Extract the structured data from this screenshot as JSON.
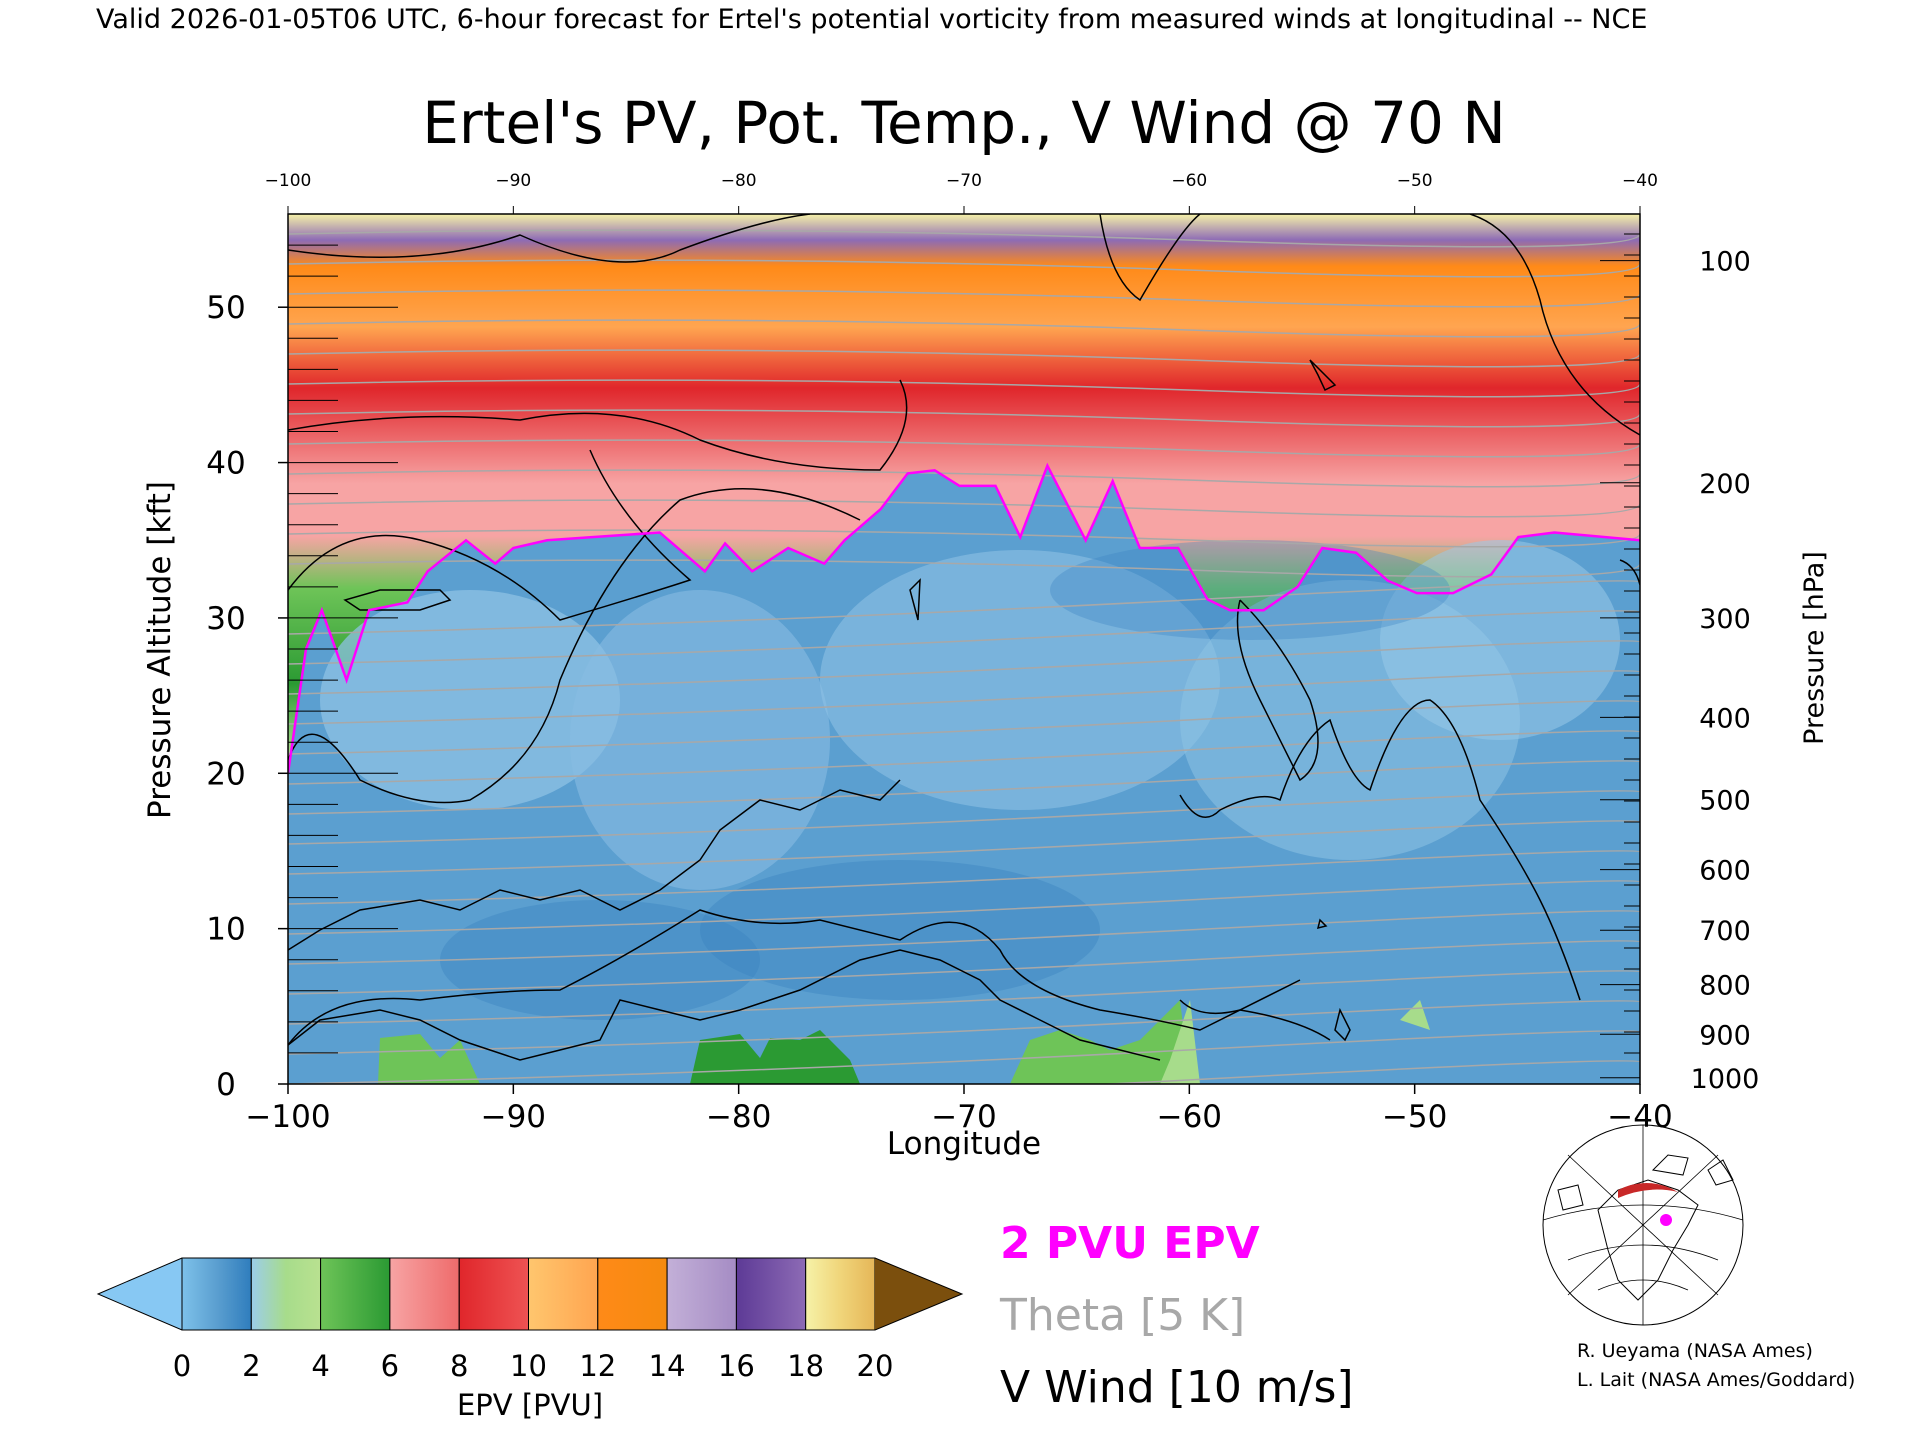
{
  "header": {
    "valid_line": "Valid 2026-01-05T06 UTC, 6-hour forecast for Ertel's potential vorticity from measured winds at longitudinal -- NCE"
  },
  "chart_data": {
    "type": "heatmap",
    "title": "Ertel's PV, Pot. Temp., V Wind @ 70 N",
    "xlabel": "Longitude",
    "ylabel_left": "Pressure Altitude [kft]",
    "ylabel_right": "Pressure [hPa]",
    "xlim": [
      -100,
      -40
    ],
    "ylim": [
      0,
      56
    ],
    "x_ticks": [
      -100,
      -90,
      -80,
      -70,
      -60,
      -50,
      -40
    ],
    "y_ticks": [
      0,
      10,
      20,
      30,
      40,
      50
    ],
    "pressure_ticks": [
      {
        "label": "100",
        "kft": 53.0
      },
      {
        "label": "200",
        "kft": 38.7
      },
      {
        "label": "300",
        "kft": 30.0
      },
      {
        "label": "400",
        "kft": 23.6
      },
      {
        "label": "500",
        "kft": 18.3
      },
      {
        "label": "600",
        "kft": 13.8
      },
      {
        "label": "700",
        "kft": 9.9
      },
      {
        "label": "800",
        "kft": 6.4
      },
      {
        "label": "900",
        "kft": 3.2
      },
      {
        "label": "1000",
        "kft": 0.4
      }
    ],
    "tropopause_2pvu_kft": [
      [
        -100,
        20
      ],
      [
        -99.2,
        28
      ],
      [
        -98.5,
        30.5
      ],
      [
        -97.4,
        26
      ],
      [
        -96.4,
        30.5
      ],
      [
        -94.7,
        31
      ],
      [
        -93.8,
        33
      ],
      [
        -92.1,
        35
      ],
      [
        -90.8,
        33.5
      ],
      [
        -90,
        34.5
      ],
      [
        -88.5,
        35
      ],
      [
        -86.5,
        35.2
      ],
      [
        -83.5,
        35.5
      ],
      [
        -81.5,
        33
      ],
      [
        -80.6,
        34.8
      ],
      [
        -79.4,
        33
      ],
      [
        -77.8,
        34.5
      ],
      [
        -76.2,
        33.5
      ],
      [
        -75.3,
        35
      ],
      [
        -73.7,
        37
      ],
      [
        -72.5,
        39.3
      ],
      [
        -71.3,
        39.5
      ],
      [
        -70.2,
        38.5
      ],
      [
        -68.6,
        38.5
      ],
      [
        -67.5,
        35.2
      ],
      [
        -66.3,
        39.8
      ],
      [
        -64.6,
        35
      ],
      [
        -63.4,
        38.8
      ],
      [
        -62.2,
        34.5
      ],
      [
        -60.5,
        34.5
      ],
      [
        -59.2,
        31.2
      ],
      [
        -58.2,
        30.5
      ],
      [
        -56.7,
        30.5
      ],
      [
        -55.2,
        32
      ],
      [
        -54.1,
        34.5
      ],
      [
        -52.6,
        34.2
      ],
      [
        -51.2,
        32.4
      ],
      [
        -49.9,
        31.6
      ],
      [
        -48.3,
        31.6
      ],
      [
        -46.6,
        32.8
      ],
      [
        -45.4,
        35.2
      ],
      [
        -43.8,
        35.5
      ],
      [
        -40,
        35
      ]
    ],
    "pv_colorbar": {
      "label": "EPV [PVU]",
      "levels": [
        0,
        2,
        4,
        6,
        8,
        10,
        12,
        14,
        16,
        18,
        20
      ],
      "tick_labels": [
        "0",
        "2",
        "4",
        "6",
        "8",
        "10",
        "12",
        "14",
        "16",
        "18",
        "20"
      ],
      "colors": [
        "#7dc1ea",
        "#5b9fd0",
        "#2f7dbd",
        "#9ccdea",
        "#a7dc8b",
        "#b9e190",
        "#6ec458",
        "#2b9a33",
        "#f7a4a4",
        "#ee6b6b",
        "#e0262b",
        "#ee5353",
        "#ffc66e",
        "#ffa550",
        "#ff8a18",
        "#f58a0e",
        "#c3b0d8",
        "#a58cc4",
        "#5d3a96",
        "#8d6bb5",
        "#f6f2a8",
        "#f0d57a",
        "#e5b658"
      ],
      "under_color": "#87c8f3",
      "over_color": "#7b4f0d"
    },
    "legend": {
      "epv_label": "2 PVU EPV",
      "theta_label": "Theta [5 K]",
      "wind_label": "V Wind [10 m/s]"
    },
    "colors": {
      "tropopause": "#ff00ff",
      "theta": "#a8a8a8",
      "wind": "#000000"
    }
  },
  "inset_map": {
    "name": "locator map"
  },
  "credits": {
    "line1": "R. Ueyama (NASA Ames)",
    "line2": "L. Lait (NASA Ames/Goddard)"
  }
}
